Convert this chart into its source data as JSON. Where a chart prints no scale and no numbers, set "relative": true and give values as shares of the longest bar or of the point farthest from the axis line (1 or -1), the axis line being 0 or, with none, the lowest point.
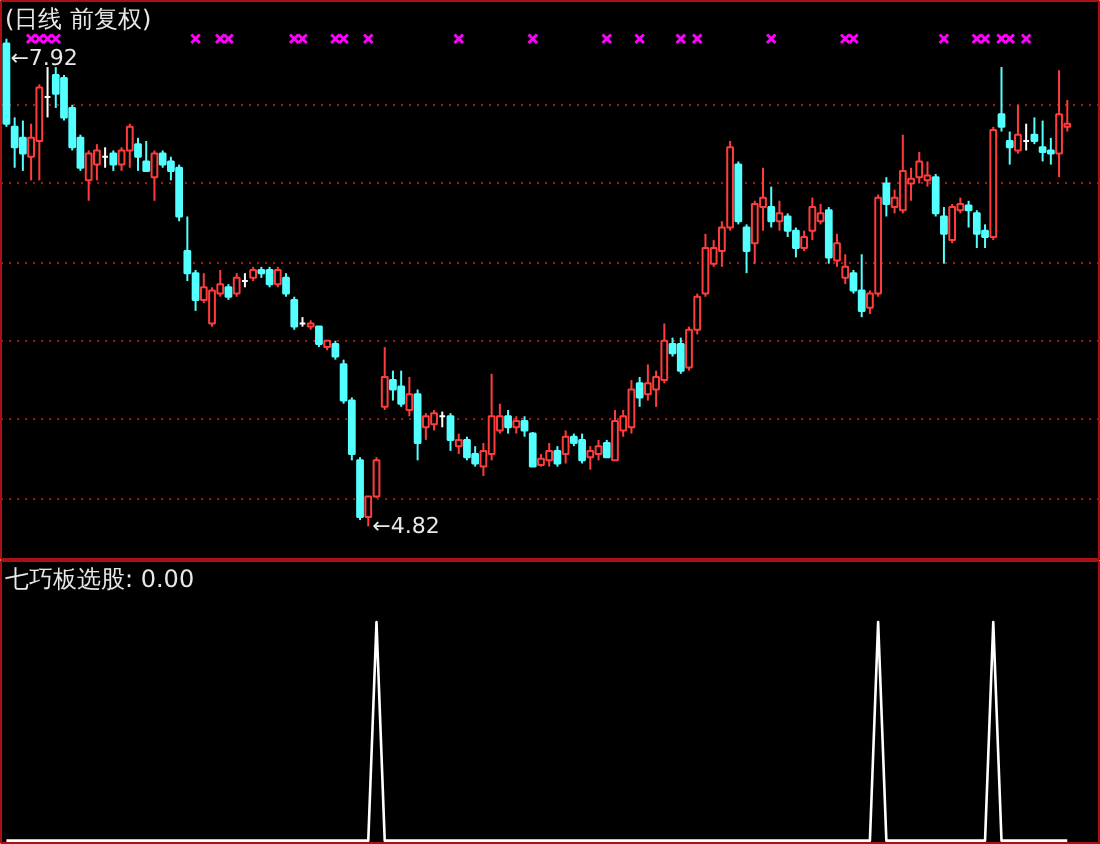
{
  "chart_data": [
    {
      "type": "candlestick",
      "title": "(日线 前复权)",
      "categories": [
        null,
        null,
        null,
        null,
        null,
        null,
        null,
        null,
        null,
        null,
        null,
        null,
        null,
        null,
        null,
        null,
        null,
        null,
        null,
        null,
        null,
        null,
        null,
        null,
        null,
        null,
        null,
        null,
        null,
        null,
        null,
        null,
        null,
        null,
        null,
        null,
        null,
        null,
        null,
        null,
        null,
        null,
        null,
        null,
        null,
        null,
        null,
        null,
        null,
        null,
        null,
        null,
        null,
        null,
        null,
        null,
        null,
        null,
        null,
        null,
        null,
        null,
        null,
        null,
        null,
        null,
        null,
        null,
        null,
        null,
        null,
        null,
        null,
        null,
        null,
        null,
        null,
        null,
        null,
        null,
        null,
        null,
        null,
        null,
        null,
        null,
        null,
        null,
        null,
        null,
        null,
        null,
        null,
        null,
        null,
        null,
        null,
        null,
        null,
        null,
        null,
        null,
        null,
        null,
        null,
        null,
        null,
        null,
        null,
        null,
        null,
        null,
        null,
        null,
        null,
        null,
        null,
        null,
        null,
        null,
        null,
        null,
        null,
        null,
        null,
        null,
        null,
        null,
        null,
        null
      ],
      "ohlc": [
        [
          7.89,
          7.92,
          7.36,
          7.38
        ],
        [
          7.36,
          7.42,
          7.1,
          7.23
        ],
        [
          7.29,
          7.4,
          7.08,
          7.19
        ],
        [
          7.17,
          7.38,
          7.02,
          7.29
        ],
        [
          7.27,
          7.63,
          7.02,
          7.61
        ],
        [
          7.55,
          7.74,
          7.42,
          7.55
        ],
        [
          7.69,
          7.74,
          7.48,
          7.57
        ],
        [
          7.67,
          7.69,
          7.4,
          7.42
        ],
        [
          7.48,
          7.5,
          7.21,
          7.23
        ],
        [
          7.29,
          7.31,
          7.08,
          7.1
        ],
        [
          7.02,
          7.21,
          6.89,
          7.19
        ],
        [
          7.12,
          7.25,
          7.02,
          7.21
        ],
        [
          7.17,
          7.23,
          7.1,
          7.17
        ],
        [
          7.19,
          7.21,
          7.08,
          7.12
        ],
        [
          7.12,
          7.23,
          7.08,
          7.21
        ],
        [
          7.21,
          7.38,
          7.1,
          7.36
        ],
        [
          7.25,
          7.29,
          7.08,
          7.17
        ],
        [
          7.14,
          7.27,
          7.08,
          7.08
        ],
        [
          7.04,
          7.21,
          6.89,
          7.19
        ],
        [
          7.19,
          7.21,
          7.1,
          7.12
        ],
        [
          7.14,
          7.17,
          7.02,
          7.08
        ],
        [
          7.1,
          7.12,
          6.76,
          6.79
        ],
        [
          6.57,
          6.79,
          6.38,
          6.43
        ],
        [
          6.43,
          6.45,
          6.19,
          6.26
        ],
        [
          6.26,
          6.43,
          6.24,
          6.34
        ],
        [
          6.11,
          6.34,
          6.09,
          6.32
        ],
        [
          6.3,
          6.45,
          6.28,
          6.36
        ],
        [
          6.34,
          6.36,
          6.26,
          6.28
        ],
        [
          6.3,
          6.43,
          6.28,
          6.4
        ],
        [
          6.38,
          6.43,
          6.34,
          6.38
        ],
        [
          6.4,
          6.47,
          6.38,
          6.45
        ],
        [
          6.45,
          6.47,
          6.4,
          6.43
        ],
        [
          6.45,
          6.47,
          6.34,
          6.36
        ],
        [
          6.36,
          6.47,
          6.34,
          6.45
        ],
        [
          6.4,
          6.43,
          6.28,
          6.3
        ],
        [
          6.26,
          6.28,
          6.07,
          6.09
        ],
        [
          6.11,
          6.15,
          6.09,
          6.11
        ],
        [
          6.09,
          6.13,
          6.07,
          6.11
        ],
        [
          6.09,
          6.09,
          5.96,
          5.98
        ],
        [
          5.96,
          6.0,
          5.94,
          6.0
        ],
        [
          5.98,
          6.0,
          5.88,
          5.9
        ],
        [
          5.85,
          5.88,
          5.6,
          5.62
        ],
        [
          5.62,
          5.64,
          5.24,
          5.28
        ],
        [
          5.24,
          5.26,
          4.86,
          4.88
        ],
        [
          4.88,
          5.01,
          4.82,
          5.01
        ],
        [
          5.01,
          5.26,
          5.0,
          5.24
        ],
        [
          5.58,
          5.96,
          5.56,
          5.77
        ],
        [
          5.75,
          5.81,
          5.62,
          5.69
        ],
        [
          5.71,
          5.81,
          5.58,
          5.6
        ],
        [
          5.56,
          5.77,
          5.52,
          5.66
        ],
        [
          5.66,
          5.69,
          5.24,
          5.35
        ],
        [
          5.45,
          5.54,
          5.37,
          5.52
        ],
        [
          5.47,
          5.56,
          5.43,
          5.54
        ],
        [
          5.52,
          5.55,
          5.45,
          5.52
        ],
        [
          5.52,
          5.54,
          5.3,
          5.37
        ],
        [
          5.33,
          5.41,
          5.28,
          5.37
        ],
        [
          5.37,
          5.39,
          5.24,
          5.26
        ],
        [
          5.28,
          5.33,
          5.2,
          5.22
        ],
        [
          5.2,
          5.35,
          5.14,
          5.3
        ],
        [
          5.28,
          5.79,
          5.24,
          5.52
        ],
        [
          5.43,
          5.6,
          5.41,
          5.52
        ],
        [
          5.52,
          5.56,
          5.41,
          5.45
        ],
        [
          5.45,
          5.52,
          5.41,
          5.49
        ],
        [
          5.49,
          5.52,
          5.39,
          5.43
        ],
        [
          5.41,
          5.42,
          5.2,
          5.2
        ],
        [
          5.21,
          5.28,
          5.2,
          5.25
        ],
        [
          5.24,
          5.35,
          5.2,
          5.3
        ],
        [
          5.3,
          5.33,
          5.2,
          5.22
        ],
        [
          5.28,
          5.43,
          5.22,
          5.39
        ],
        [
          5.39,
          5.41,
          5.33,
          5.35
        ],
        [
          5.37,
          5.41,
          5.22,
          5.24
        ],
        [
          5.26,
          5.33,
          5.18,
          5.3
        ],
        [
          5.28,
          5.37,
          5.24,
          5.33
        ],
        [
          5.35,
          5.37,
          5.26,
          5.26
        ],
        [
          5.24,
          5.56,
          5.24,
          5.49
        ],
        [
          5.43,
          5.56,
          5.39,
          5.52
        ],
        [
          5.45,
          5.75,
          5.41,
          5.69
        ],
        [
          5.73,
          5.77,
          5.58,
          5.64
        ],
        [
          5.66,
          5.85,
          5.62,
          5.73
        ],
        [
          5.69,
          5.81,
          5.58,
          5.77
        ],
        [
          5.75,
          6.11,
          5.73,
          6.0
        ],
        [
          5.98,
          6.02,
          5.9,
          5.92
        ],
        [
          5.98,
          6.02,
          5.79,
          5.81
        ],
        [
          5.83,
          6.09,
          5.81,
          6.07
        ],
        [
          6.07,
          6.3,
          6.04,
          6.28
        ],
        [
          6.3,
          6.68,
          6.28,
          6.59
        ],
        [
          6.49,
          6.64,
          6.47,
          6.59
        ],
        [
          6.57,
          6.76,
          6.47,
          6.72
        ],
        [
          6.72,
          7.27,
          6.7,
          7.23
        ],
        [
          7.12,
          7.14,
          6.74,
          6.76
        ],
        [
          6.72,
          6.74,
          6.43,
          6.57
        ],
        [
          6.62,
          6.89,
          6.49,
          6.87
        ],
        [
          6.85,
          7.1,
          6.7,
          6.91
        ],
        [
          6.85,
          6.98,
          6.72,
          6.76
        ],
        [
          6.76,
          6.89,
          6.7,
          6.81
        ],
        [
          6.79,
          6.81,
          6.66,
          6.7
        ],
        [
          6.7,
          6.72,
          6.53,
          6.59
        ],
        [
          6.59,
          6.7,
          6.57,
          6.66
        ],
        [
          6.7,
          6.91,
          6.64,
          6.85
        ],
        [
          6.76,
          6.87,
          6.74,
          6.81
        ],
        [
          6.83,
          6.85,
          6.49,
          6.53
        ],
        [
          6.51,
          6.68,
          6.47,
          6.62
        ],
        [
          6.4,
          6.55,
          6.36,
          6.47
        ],
        [
          6.43,
          6.45,
          6.3,
          6.32
        ],
        [
          6.32,
          6.55,
          6.15,
          6.19
        ],
        [
          6.21,
          6.32,
          6.17,
          6.3
        ],
        [
          6.3,
          6.93,
          6.28,
          6.91
        ],
        [
          7.0,
          7.04,
          6.79,
          6.87
        ],
        [
          6.85,
          6.96,
          6.81,
          6.91
        ],
        [
          6.83,
          7.31,
          6.81,
          7.08
        ],
        [
          7.0,
          7.1,
          6.89,
          7.03
        ],
        [
          7.04,
          7.2,
          7.0,
          7.14
        ],
        [
          7.02,
          7.14,
          6.98,
          7.05
        ],
        [
          7.04,
          7.06,
          6.79,
          6.81
        ],
        [
          6.79,
          6.85,
          6.49,
          6.68
        ],
        [
          6.64,
          6.87,
          6.62,
          6.85
        ],
        [
          6.83,
          6.91,
          6.81,
          6.87
        ],
        [
          6.86,
          6.89,
          6.72,
          6.83
        ],
        [
          6.81,
          6.83,
          6.59,
          6.68
        ],
        [
          6.7,
          6.74,
          6.59,
          6.66
        ],
        [
          6.66,
          7.36,
          6.64,
          7.34
        ],
        [
          7.44,
          7.74,
          7.33,
          7.36
        ],
        [
          7.27,
          7.33,
          7.12,
          7.23
        ],
        [
          7.21,
          7.5,
          7.19,
          7.31
        ],
        [
          7.27,
          7.38,
          7.21,
          7.27
        ],
        [
          7.31,
          7.42,
          7.25,
          7.27
        ],
        [
          7.23,
          7.4,
          7.14,
          7.2
        ],
        [
          7.21,
          7.29,
          7.12,
          7.19
        ],
        [
          7.19,
          7.72,
          7.04,
          7.44
        ],
        [
          7.36,
          7.53,
          7.33,
          7.38
        ]
      ],
      "colors": [
        "#54ffff",
        "#54ffff",
        "#54ffff",
        "#ff3c3c",
        "#ff3c3c",
        "#ffffff",
        "#54ffff",
        "#54ffff",
        "#54ffff",
        "#54ffff",
        "#ff3c3c",
        "#ff3c3c",
        "#ffffff",
        "#54ffff",
        "#ff3c3c",
        "#ff3c3c",
        "#54ffff",
        "#54ffff",
        "#ff3c3c",
        "#54ffff",
        "#54ffff",
        "#54ffff",
        "#54ffff",
        "#54ffff",
        "#ff3c3c",
        "#ff3c3c",
        "#ff3c3c",
        "#54ffff",
        "#ff3c3c",
        "#ffffff",
        "#ff3c3c",
        "#54ffff",
        "#54ffff",
        "#ff3c3c",
        "#54ffff",
        "#54ffff",
        "#ffffff",
        "#ff3c3c",
        "#54ffff",
        "#ff3c3c",
        "#54ffff",
        "#54ffff",
        "#54ffff",
        "#54ffff",
        "#ff3c3c",
        "#ff3c3c",
        "#ff3c3c",
        "#54ffff",
        "#54ffff",
        "#ff3c3c",
        "#54ffff",
        "#ff3c3c",
        "#ff3c3c",
        "#ffffff",
        "#54ffff",
        "#ff3c3c",
        "#54ffff",
        "#54ffff",
        "#ff3c3c",
        "#ff3c3c",
        "#ff3c3c",
        "#54ffff",
        "#ff3c3c",
        "#54ffff",
        "#54ffff",
        "#ff3c3c",
        "#ff3c3c",
        "#54ffff",
        "#ff3c3c",
        "#54ffff",
        "#54ffff",
        "#ff3c3c",
        "#ff3c3c",
        "#54ffff",
        "#ff3c3c",
        "#ff3c3c",
        "#ff3c3c",
        "#54ffff",
        "#ff3c3c",
        "#ff3c3c",
        "#ff3c3c",
        "#54ffff",
        "#54ffff",
        "#ff3c3c",
        "#ff3c3c",
        "#ff3c3c",
        "#ff3c3c",
        "#ff3c3c",
        "#ff3c3c",
        "#54ffff",
        "#54ffff",
        "#ff3c3c",
        "#ff3c3c",
        "#54ffff",
        "#ff3c3c",
        "#54ffff",
        "#54ffff",
        "#ff3c3c",
        "#ff3c3c",
        "#ff3c3c",
        "#54ffff",
        "#ff3c3c",
        "#ff3c3c",
        "#54ffff",
        "#54ffff",
        "#ff3c3c",
        "#ff3c3c",
        "#54ffff",
        "#ff3c3c",
        "#ff3c3c",
        "#ff3c3c",
        "#ff3c3c",
        "#ff3c3c",
        "#54ffff",
        "#54ffff",
        "#ff3c3c",
        "#ff3c3c",
        "#54ffff",
        "#54ffff",
        "#54ffff",
        "#ff3c3c",
        "#54ffff",
        "#54ffff",
        "#ff3c3c",
        "#ffffff",
        "#54ffff",
        "#54ffff",
        "#54ffff",
        "#ff3c3c",
        "#ff3c3c"
      ],
      "series": [
        {
          "type": "scatter",
          "color": "#ff00ff",
          "marker": "cross",
          "values": [
            null,
            null,
            null,
            7.92,
            7.92,
            7.92,
            7.92,
            null,
            null,
            null,
            null,
            null,
            null,
            null,
            null,
            null,
            null,
            null,
            null,
            null,
            null,
            null,
            null,
            7.92,
            null,
            null,
            7.92,
            7.92,
            null,
            null,
            null,
            null,
            null,
            null,
            null,
            7.92,
            7.92,
            null,
            null,
            null,
            7.92,
            7.92,
            null,
            null,
            7.92,
            null,
            null,
            null,
            null,
            null,
            null,
            null,
            null,
            null,
            null,
            7.92,
            null,
            null,
            null,
            null,
            null,
            null,
            null,
            null,
            7.92,
            null,
            null,
            null,
            null,
            null,
            null,
            null,
            null,
            7.92,
            null,
            null,
            null,
            7.92,
            null,
            null,
            null,
            null,
            7.92,
            null,
            7.92,
            null,
            null,
            null,
            null,
            null,
            null,
            null,
            null,
            7.92,
            null,
            null,
            null,
            null,
            null,
            null,
            null,
            null,
            7.92,
            7.92,
            null,
            null,
            null,
            null,
            null,
            null,
            null,
            null,
            null,
            null,
            7.92,
            null,
            null,
            null,
            7.92,
            7.92,
            null,
            7.92,
            7.92,
            null,
            7.92,
            null,
            null,
            null,
            null,
            null
          ]
        }
      ],
      "ylim": [
        4.6,
        8.16
      ],
      "yticks": [
        {
          "value": 5.0,
          "label": null
        },
        {
          "value": 5.5,
          "label": null
        },
        {
          "value": 6.0,
          "label": null
        },
        {
          "value": 6.5,
          "label": null
        },
        {
          "value": 7.0,
          "label": null
        },
        {
          "value": 7.5,
          "label": null
        }
      ],
      "grid": "y",
      "tick_labels": false,
      "annotations": [
        "←7.92",
        "←4.82"
      ]
    },
    {
      "type": "line",
      "title": "七巧板选股: 0.00",
      "relative": true,
      "categories": [
        null,
        null,
        null,
        null,
        null,
        null,
        null,
        null,
        null,
        null,
        null,
        null,
        null,
        null,
        null,
        null,
        null,
        null,
        null,
        null,
        null,
        null,
        null,
        null,
        null,
        null,
        null,
        null,
        null,
        null,
        null,
        null,
        null,
        null,
        null,
        null,
        null,
        null,
        null,
        null,
        null,
        null,
        null,
        null,
        null,
        null,
        null,
        null,
        null,
        null,
        null,
        null,
        null,
        null,
        null,
        null,
        null,
        null,
        null,
        null,
        null,
        null,
        null,
        null,
        null,
        null,
        null,
        null,
        null,
        null,
        null,
        null,
        null,
        null,
        null,
        null,
        null,
        null,
        null,
        null,
        null,
        null,
        null,
        null,
        null,
        null,
        null,
        null,
        null,
        null,
        null,
        null,
        null,
        null,
        null,
        null,
        null,
        null,
        null,
        null,
        null,
        null,
        null,
        null,
        null,
        null,
        null,
        null,
        null,
        null,
        null,
        null,
        null,
        null,
        null,
        null,
        null,
        null,
        null,
        null,
        null,
        null,
        null,
        null,
        null,
        null,
        null,
        null,
        null,
        null
      ],
      "series": [
        {
          "color": "#ffffff",
          "values": [
            0,
            0,
            0,
            0,
            0,
            0,
            0,
            0,
            0,
            0,
            0,
            0,
            0,
            0,
            0,
            0,
            0,
            0,
            0,
            0,
            0,
            0,
            0,
            0,
            0,
            0,
            0,
            0,
            0,
            0,
            0,
            0,
            0,
            0,
            0,
            0,
            0,
            0,
            0,
            0,
            0,
            0,
            0,
            0,
            0,
            1,
            0,
            0,
            0,
            0,
            0,
            0,
            0,
            0,
            0,
            0,
            0,
            0,
            0,
            0,
            0,
            0,
            0,
            0,
            0,
            0,
            0,
            0,
            0,
            0,
            0,
            0,
            0,
            0,
            0,
            0,
            0,
            0,
            0,
            0,
            0,
            0,
            0,
            0,
            0,
            0,
            0,
            0,
            0,
            0,
            0,
            0,
            0,
            0,
            0,
            0,
            0,
            0,
            0,
            0,
            0,
            0,
            0,
            0,
            0,
            0,
            1,
            0,
            0,
            0,
            0,
            0,
            0,
            0,
            0,
            0,
            0,
            0,
            0,
            0,
            1,
            0,
            0,
            0,
            0,
            0,
            0,
            0,
            0,
            0
          ]
        }
      ],
      "tick_labels": false
    }
  ]
}
